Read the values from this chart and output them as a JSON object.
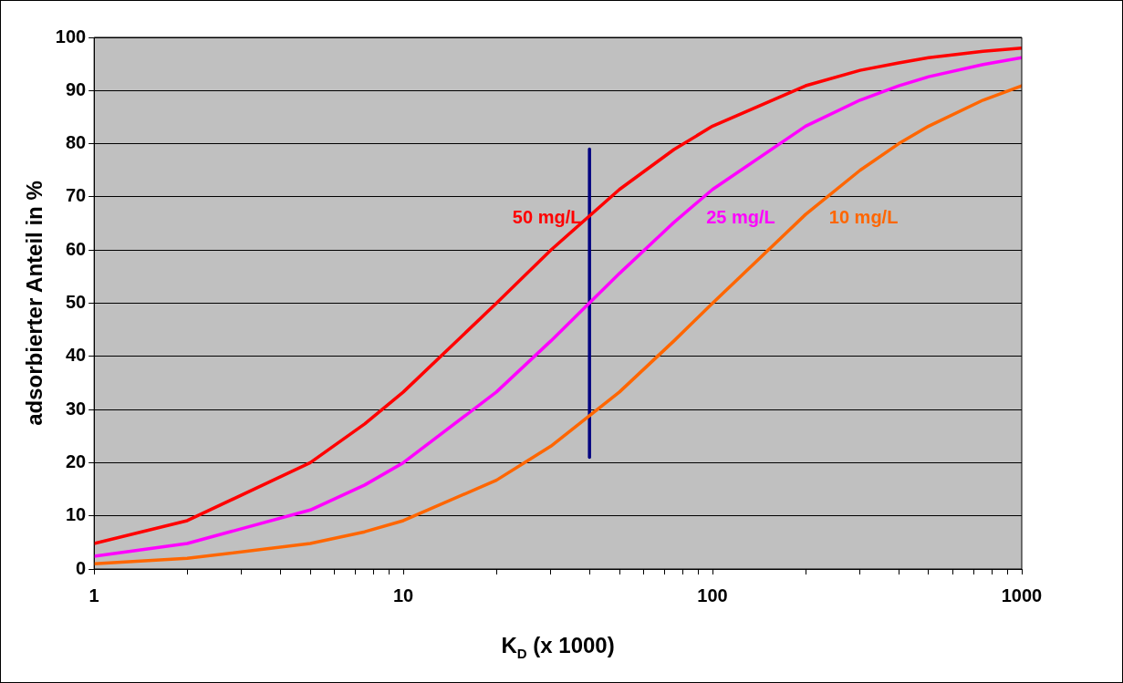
{
  "chart_data": {
    "type": "line",
    "xlabel": "K$_{D}$ (x 1000)",
    "ylabel": "adsorbierter Anteil in %",
    "x": [
      1,
      2,
      5,
      7.5,
      10,
      20,
      30,
      50,
      75,
      100,
      200,
      300,
      400,
      500,
      750,
      1000
    ],
    "series": [
      {
        "name": "50 mg/L",
        "color": "#ff0000",
        "values": [
          4.8,
          9.1,
          20,
          27.3,
          33.3,
          50,
          60,
          71.4,
          78.9,
          83.3,
          90.9,
          93.8,
          95.2,
          96.2,
          97.4,
          98
        ]
      },
      {
        "name": "25 mg/L",
        "color": "#ff00ff",
        "values": [
          2.4,
          4.8,
          11.1,
          15.8,
          20,
          33.3,
          42.9,
          55.6,
          65.2,
          71.4,
          83.3,
          88.2,
          90.9,
          92.6,
          94.9,
          96.2
        ]
      },
      {
        "name": "10 mg/L",
        "color": "#ff6600",
        "values": [
          1,
          2,
          4.8,
          7,
          9.1,
          16.7,
          23.1,
          33.3,
          42.9,
          50,
          66.7,
          75,
          80,
          83.3,
          88.2,
          90.9
        ]
      },
      {
        "color": "#000080",
        "x": [
          40,
          40
        ],
        "values": [
          21,
          79
        ]
      }
    ],
    "log": "x",
    "xlim": [
      1,
      1000
    ],
    "ylim": [
      0,
      100
    ],
    "xticks": [
      1,
      {
        "value": 2,
        "label": null
      },
      {
        "value": 3,
        "label": null
      },
      {
        "value": 4,
        "label": null
      },
      {
        "value": 5,
        "label": null
      },
      {
        "value": 6,
        "label": null
      },
      {
        "value": 7,
        "label": null
      },
      {
        "value": 8,
        "label": null
      },
      {
        "value": 9,
        "label": null
      },
      10,
      {
        "value": 20,
        "label": null
      },
      {
        "value": 30,
        "label": null
      },
      {
        "value": 40,
        "label": null
      },
      {
        "value": 50,
        "label": null
      },
      {
        "value": 60,
        "label": null
      },
      {
        "value": 70,
        "label": null
      },
      {
        "value": 80,
        "label": null
      },
      {
        "value": 90,
        "label": null
      },
      100,
      {
        "value": 200,
        "label": null
      },
      {
        "value": 300,
        "label": null
      },
      {
        "value": 400,
        "label": null
      },
      {
        "value": 500,
        "label": null
      },
      {
        "value": 600,
        "label": null
      },
      {
        "value": 700,
        "label": null
      },
      {
        "value": 800,
        "label": null
      },
      {
        "value": 900,
        "label": null
      },
      1000
    ],
    "yticks": [
      0,
      10,
      20,
      30,
      40,
      50,
      60,
      70,
      80,
      90,
      100
    ],
    "grid": "y",
    "legend": false,
    "marker": "none",
    "line_style": "solid"
  }
}
